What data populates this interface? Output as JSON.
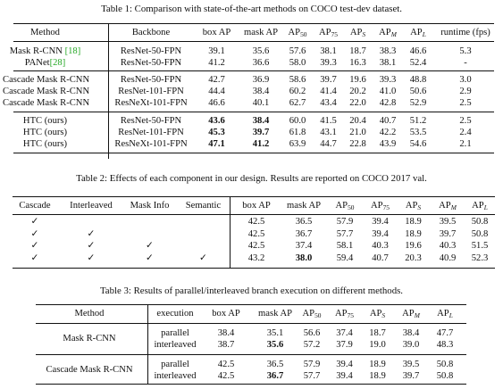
{
  "table1": {
    "caption": "Table 1: Comparison with state-of-the-art methods on COCO test-dev dataset.",
    "headers": [
      {
        "main": "Method"
      },
      {
        "main": "Backbone"
      },
      {
        "main": "box AP"
      },
      {
        "main": "mask AP"
      },
      {
        "main": "AP",
        "sub": "50"
      },
      {
        "main": "AP",
        "sub": "75"
      },
      {
        "main": "AP",
        "sub": "S"
      },
      {
        "main": "AP",
        "sub": "M"
      },
      {
        "main": "AP",
        "sub": "L"
      },
      {
        "main": "runtime (fps)"
      }
    ],
    "rows": [
      {
        "method": "Mask R-CNN ",
        "cite": "[18]",
        "backbone": "ResNet-50-FPN",
        "vals": [
          "39.1",
          "35.6",
          "57.6",
          "38.1",
          "18.7",
          "38.3",
          "46.6",
          "5.3"
        ]
      },
      {
        "method": "PANet",
        "cite": "[28]",
        "backbone": "ResNet-50-FPN",
        "vals": [
          "41.2",
          "36.6",
          "58.0",
          "39.3",
          "16.3",
          "38.1",
          "52.4",
          "-"
        ]
      },
      {
        "method": "Cascade Mask R-CNN",
        "cite": "",
        "backbone": "ResNet-50-FPN",
        "vals": [
          "42.7",
          "36.9",
          "58.6",
          "39.7",
          "19.6",
          "39.3",
          "48.8",
          "3.0"
        ]
      },
      {
        "method": "Cascade Mask R-CNN",
        "cite": "",
        "backbone": "ResNet-101-FPN",
        "vals": [
          "44.4",
          "38.4",
          "60.2",
          "41.4",
          "20.2",
          "41.0",
          "50.6",
          "2.9"
        ]
      },
      {
        "method": "Cascade Mask R-CNN",
        "cite": "",
        "backbone": "ResNeXt-101-FPN",
        "vals": [
          "46.6",
          "40.1",
          "62.7",
          "43.4",
          "22.0",
          "42.8",
          "52.9",
          "2.5"
        ]
      },
      {
        "method": "HTC (ours)",
        "cite": "",
        "backbone": "ResNet-50-FPN",
        "vals": [
          "43.6",
          "38.4",
          "60.0",
          "41.5",
          "20.4",
          "40.7",
          "51.2",
          "2.5"
        ]
      },
      {
        "method": "HTC (ours)",
        "cite": "",
        "backbone": "ResNet-101-FPN",
        "vals": [
          "45.3",
          "39.7",
          "61.8",
          "43.1",
          "21.0",
          "42.2",
          "53.5",
          "2.4"
        ]
      },
      {
        "method": "HTC (ours)",
        "cite": "",
        "backbone": "ResNeXt-101-FPN",
        "vals": [
          "47.1",
          "41.2",
          "63.9",
          "44.7",
          "22.8",
          "43.9",
          "54.6",
          "2.1"
        ]
      }
    ]
  },
  "table2": {
    "caption": "Table 2: Effects of each component in our design. Results are reported on COCO 2017 val.",
    "headers": [
      {
        "main": "Cascade"
      },
      {
        "main": "Interleaved"
      },
      {
        "main": "Mask Info"
      },
      {
        "main": "Semantic"
      },
      {
        "main": "box AP"
      },
      {
        "main": "mask AP"
      },
      {
        "main": "AP",
        "sub": "50"
      },
      {
        "main": "AP",
        "sub": "75"
      },
      {
        "main": "AP",
        "sub": "S"
      },
      {
        "main": "AP",
        "sub": "M"
      },
      {
        "main": "AP",
        "sub": "L"
      }
    ],
    "check": "✓",
    "rows": [
      {
        "flags": [
          true,
          false,
          false,
          false
        ],
        "vals": [
          "42.5",
          "36.5",
          "57.9",
          "39.4",
          "18.9",
          "39.5",
          "50.8"
        ]
      },
      {
        "flags": [
          true,
          true,
          false,
          false
        ],
        "vals": [
          "42.5",
          "36.7",
          "57.7",
          "39.4",
          "18.9",
          "39.7",
          "50.8"
        ]
      },
      {
        "flags": [
          true,
          true,
          true,
          false
        ],
        "vals": [
          "42.5",
          "37.4",
          "58.1",
          "40.3",
          "19.6",
          "40.3",
          "51.5"
        ]
      },
      {
        "flags": [
          true,
          true,
          true,
          true
        ],
        "vals": [
          "43.2",
          "38.0",
          "59.4",
          "40.7",
          "20.3",
          "40.9",
          "52.3"
        ]
      }
    ]
  },
  "table3": {
    "caption": "Table 3: Results of parallel/interleaved branch execution on different methods.",
    "headers": [
      {
        "main": "Method"
      },
      {
        "main": "execution"
      },
      {
        "main": "box AP"
      },
      {
        "main": "mask AP"
      },
      {
        "main": "AP",
        "sub": "50"
      },
      {
        "main": "AP",
        "sub": "75"
      },
      {
        "main": "AP",
        "sub": "S"
      },
      {
        "main": "AP",
        "sub": "M"
      },
      {
        "main": "AP",
        "sub": "L"
      }
    ],
    "groups": [
      {
        "method": "Mask R-CNN",
        "rows": [
          {
            "execution": "parallel",
            "vals": [
              "38.4",
              "35.1",
              "56.6",
              "37.4",
              "18.7",
              "38.4",
              "47.7"
            ]
          },
          {
            "execution": "interleaved",
            "vals": [
              "38.7",
              "35.6",
              "57.2",
              "37.9",
              "19.0",
              "39.0",
              "48.3"
            ]
          }
        ]
      },
      {
        "method": "Cascade Mask R-CNN",
        "rows": [
          {
            "execution": "parallel",
            "vals": [
              "42.5",
              "36.5",
              "57.9",
              "39.4",
              "18.9",
              "39.5",
              "50.8"
            ]
          },
          {
            "execution": "interleaved",
            "vals": [
              "42.5",
              "36.7",
              "57.7",
              "39.4",
              "18.9",
              "39.7",
              "50.8"
            ]
          }
        ]
      }
    ]
  }
}
